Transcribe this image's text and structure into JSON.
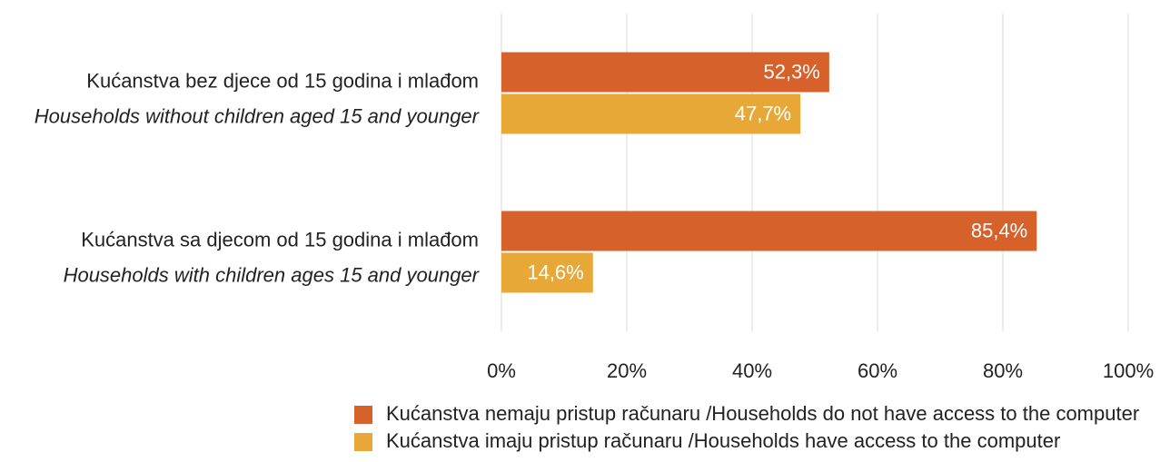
{
  "chart_data": {
    "type": "hbar",
    "categories": [
      [
        "Kućanstva bez djece od 15 godina i mlađom",
        "Households without children aged 15 and younger"
      ],
      [
        "Kućanstva sa djecom od 15 godina i mlađom",
        "Households with children ages 15 and younger"
      ]
    ],
    "series": [
      {
        "name": "Kućanstva nemaju pristup računaru /Households do not have access to the computer",
        "color": "#d6612b",
        "values": [
          52.3,
          85.4
        ],
        "value_labels": [
          "52,3%",
          "85,4%"
        ]
      },
      {
        "name": "Kućanstva imaju pristup računaru /Households have access to the computer",
        "color": "#e8a838",
        "values": [
          47.7,
          14.6
        ],
        "value_labels": [
          "47,7%",
          "14,6%"
        ]
      }
    ],
    "xlim": [
      0,
      100
    ],
    "xticks": [
      {
        "value": 0,
        "label": "0%"
      },
      {
        "value": 20,
        "label": "20%"
      },
      {
        "value": 40,
        "label": "40%"
      },
      {
        "value": 60,
        "label": "60%"
      },
      {
        "value": 80,
        "label": "80%"
      },
      {
        "value": 100,
        "label": "100%"
      }
    ],
    "grid": true,
    "legend": "bottom"
  }
}
